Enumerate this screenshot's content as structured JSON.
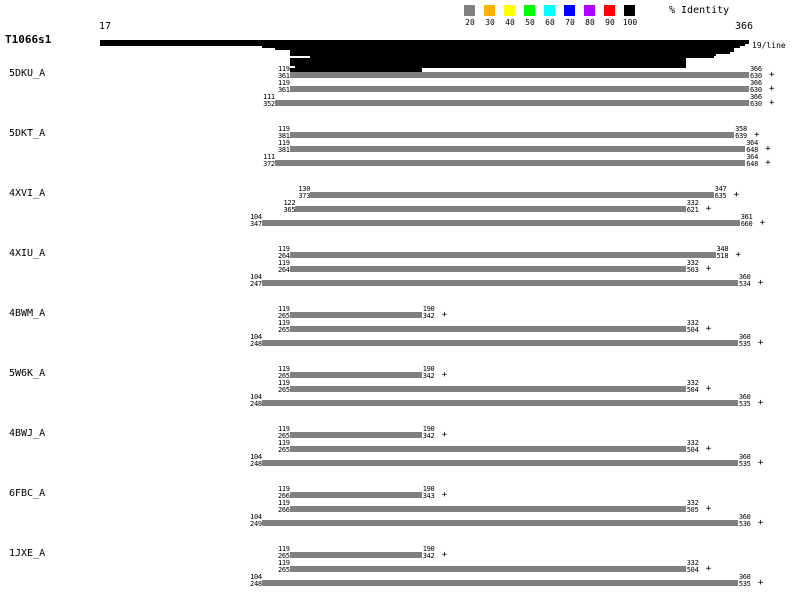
{
  "query": {
    "name": "T1066s1",
    "start": 17,
    "end": 366,
    "per_line_label": "19/line"
  },
  "legend": {
    "title": "% Identity",
    "items": [
      {
        "label": "20",
        "color": "#808080"
      },
      {
        "label": "30",
        "color": "#ffb000"
      },
      {
        "label": "40",
        "color": "#ffff00"
      },
      {
        "label": "50",
        "color": "#00ff00"
      },
      {
        "label": "60",
        "color": "#00ffff"
      },
      {
        "label": "70",
        "color": "#0000ff"
      },
      {
        "label": "80",
        "color": "#b000ff"
      },
      {
        "label": "90",
        "color": "#ff0000"
      },
      {
        "label": "100",
        "color": "#000000"
      }
    ]
  },
  "coverage_lines": [
    [
      17,
      366
    ],
    [
      17,
      366
    ],
    [
      17,
      364
    ],
    [
      104,
      361
    ],
    [
      111,
      358
    ],
    [
      119,
      358
    ],
    [
      119,
      356
    ],
    [
      119,
      348
    ],
    [
      130,
      347
    ],
    [
      119,
      332
    ],
    [
      119,
      332
    ],
    [
      119,
      332
    ],
    [
      119,
      332
    ],
    [
      122,
      332
    ],
    [
      119,
      190
    ],
    [
      119,
      190
    ],
    [
      119,
      190
    ],
    [
      122,
      190
    ]
  ],
  "hits": [
    {
      "name": "5DKU_A",
      "alignments": [
        {
          "q_start": "119",
          "t_start": "361",
          "q_end": "366",
          "t_end": "630",
          "strand": "+"
        },
        {
          "q_start": "119",
          "t_start": "361",
          "q_end": "366",
          "t_end": "630",
          "strand": "+"
        },
        {
          "q_start": "111",
          "t_start": "352",
          "q_end": "366",
          "t_end": "630",
          "strand": "+"
        }
      ]
    },
    {
      "name": "5DKT_A",
      "alignments": [
        {
          "q_start": "119",
          "t_start": "381",
          "q_end": "358",
          "t_end": "639",
          "strand": "+"
        },
        {
          "q_start": "119",
          "t_start": "381",
          "q_end": "364",
          "t_end": "648",
          "strand": "+"
        },
        {
          "q_start": "111",
          "t_start": "372",
          "q_end": "364",
          "t_end": "648",
          "strand": "+"
        }
      ]
    },
    {
      "name": "4XVI_A",
      "alignments": [
        {
          "q_start": "130",
          "t_start": "373",
          "q_end": "347",
          "t_end": "635",
          "strand": "+"
        },
        {
          "q_start": "122",
          "t_start": "365",
          "q_end": "332",
          "t_end": "621",
          "strand": "+"
        },
        {
          "q_start": "104",
          "t_start": "347",
          "q_end": "361",
          "t_end": "660",
          "strand": "+"
        }
      ]
    },
    {
      "name": "4XIU_A",
      "alignments": [
        {
          "q_start": "119",
          "t_start": "264",
          "q_end": "348",
          "t_end": "518",
          "strand": "+"
        },
        {
          "q_start": "119",
          "t_start": "264",
          "q_end": "332",
          "t_end": "503",
          "strand": "+"
        },
        {
          "q_start": "104",
          "t_start": "247",
          "q_end": "360",
          "t_end": "534",
          "strand": "+"
        }
      ]
    },
    {
      "name": "4BWM_A",
      "alignments": [
        {
          "q_start": "119",
          "t_start": "265",
          "q_end": "190",
          "t_end": "342",
          "strand": "+"
        },
        {
          "q_start": "119",
          "t_start": "265",
          "q_end": "332",
          "t_end": "504",
          "strand": "+"
        },
        {
          "q_start": "104",
          "t_start": "248",
          "q_end": "360",
          "t_end": "535",
          "strand": "+"
        }
      ]
    },
    {
      "name": "5W6K_A",
      "alignments": [
        {
          "q_start": "119",
          "t_start": "265",
          "q_end": "190",
          "t_end": "342",
          "strand": "+"
        },
        {
          "q_start": "119",
          "t_start": "265",
          "q_end": "332",
          "t_end": "504",
          "strand": "+"
        },
        {
          "q_start": "104",
          "t_start": "248",
          "q_end": "360",
          "t_end": "535",
          "strand": "+"
        }
      ]
    },
    {
      "name": "4BWJ_A",
      "alignments": [
        {
          "q_start": "119",
          "t_start": "265",
          "q_end": "190",
          "t_end": "342",
          "strand": "+"
        },
        {
          "q_start": "119",
          "t_start": "265",
          "q_end": "332",
          "t_end": "504",
          "strand": "+"
        },
        {
          "q_start": "104",
          "t_start": "248",
          "q_end": "360",
          "t_end": "535",
          "strand": "+"
        }
      ]
    },
    {
      "name": "6FBC_A",
      "alignments": [
        {
          "q_start": "119",
          "t_start": "266",
          "q_end": "190",
          "t_end": "343",
          "strand": "+"
        },
        {
          "q_start": "119",
          "t_start": "266",
          "q_end": "332",
          "t_end": "505",
          "strand": "+"
        },
        {
          "q_start": "104",
          "t_start": "249",
          "q_end": "360",
          "t_end": "536",
          "strand": "+"
        }
      ]
    },
    {
      "name": "1JXE_A",
      "alignments": [
        {
          "q_start": "119",
          "t_start": "265",
          "q_end": "190",
          "t_end": "342",
          "strand": "+"
        },
        {
          "q_start": "119",
          "t_start": "265",
          "q_end": "332",
          "t_end": "504",
          "strand": "+"
        },
        {
          "q_start": "104",
          "t_start": "248",
          "q_end": "360",
          "t_end": "535",
          "strand": "+"
        }
      ]
    }
  ]
}
